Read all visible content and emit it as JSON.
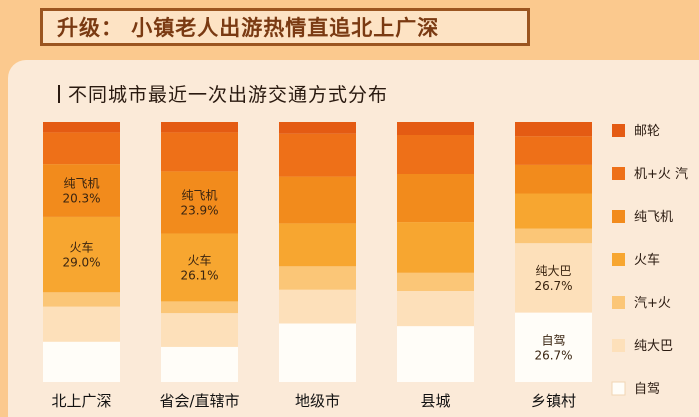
{
  "header": {
    "title": "升级： 小镇老人出游热情直追北上广深"
  },
  "chart_data": {
    "type": "bar",
    "stacked": true,
    "percent": true,
    "title": "不同城市最近一次出游交通方式分布",
    "categories": [
      "北上广深",
      "省会/直辖市",
      "地级市",
      "县城",
      "乡镇村"
    ],
    "series": [
      {
        "name": "自驾",
        "color": "#fffdf8",
        "values": [
          15.5,
          13.5,
          22.5,
          21.5,
          26.7
        ]
      },
      {
        "name": "纯大巴",
        "color": "#fde0ba",
        "values": [
          13.5,
          13.0,
          13.0,
          13.5,
          26.7
        ]
      },
      {
        "name": "汽+火",
        "color": "#fbc677",
        "values": [
          5.5,
          4.5,
          9.0,
          7.0,
          5.6
        ]
      },
      {
        "name": "火车",
        "color": "#f7a630",
        "values": [
          29.0,
          26.1,
          16.5,
          19.5,
          13.5
        ]
      },
      {
        "name": "纯飞机",
        "color": "#f28b1c",
        "values": [
          20.3,
          23.9,
          18.0,
          18.5,
          11.0
        ]
      },
      {
        "name": "机+火 汽",
        "color": "#ee7018",
        "values": [
          12.2,
          15.0,
          16.5,
          15.0,
          11.0
        ]
      },
      {
        "name": "邮轮",
        "color": "#e45b13",
        "values": [
          4.0,
          4.0,
          4.5,
          5.0,
          5.5
        ]
      }
    ],
    "data_labels": [
      {
        "category": 0,
        "series": "纯飞机",
        "name": "纯飞机",
        "value": "20.3%"
      },
      {
        "category": 0,
        "series": "火车",
        "name": "火车",
        "value": "29.0%"
      },
      {
        "category": 1,
        "series": "纯飞机",
        "name": "纯飞机",
        "value": "23.9%"
      },
      {
        "category": 1,
        "series": "火车",
        "name": "火车",
        "value": "26.1%"
      },
      {
        "category": 4,
        "series": "纯大巴",
        "name": "纯大巴",
        "value": "26.7%"
      },
      {
        "category": 4,
        "series": "自驾",
        "name": "自驾",
        "value": "26.7%"
      }
    ],
    "legend_position": "right",
    "legend_order": [
      "邮轮",
      "机+火 汽",
      "纯飞机",
      "火车",
      "汽+火",
      "纯大巴",
      "自驾"
    ]
  }
}
